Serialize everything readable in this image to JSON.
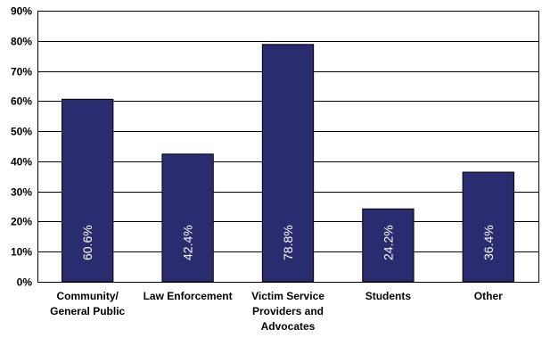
{
  "chart_data": {
    "type": "bar",
    "categories": [
      [
        "Community/",
        "General Public"
      ],
      [
        "Law Enforcement"
      ],
      [
        "Victim Service",
        "Providers and",
        "Advocates"
      ],
      [
        "Students"
      ],
      [
        "Other"
      ]
    ],
    "values": [
      60.6,
      42.4,
      78.8,
      24.2,
      36.4
    ],
    "data_labels": [
      "60.6%",
      "42.4%",
      "78.8%",
      "24.2%",
      "36.4%"
    ],
    "y_ticks": [
      0,
      10,
      20,
      30,
      40,
      50,
      60,
      70,
      80,
      90
    ],
    "y_tick_labels": [
      "0%",
      "10%",
      "20%",
      "30%",
      "40%",
      "50%",
      "60%",
      "70%",
      "80%",
      "90%"
    ],
    "ylim": [
      0,
      90
    ],
    "grid": true,
    "legend": "none",
    "bar_color": "#2b2b6f",
    "title": "",
    "xlabel": "",
    "ylabel": ""
  }
}
